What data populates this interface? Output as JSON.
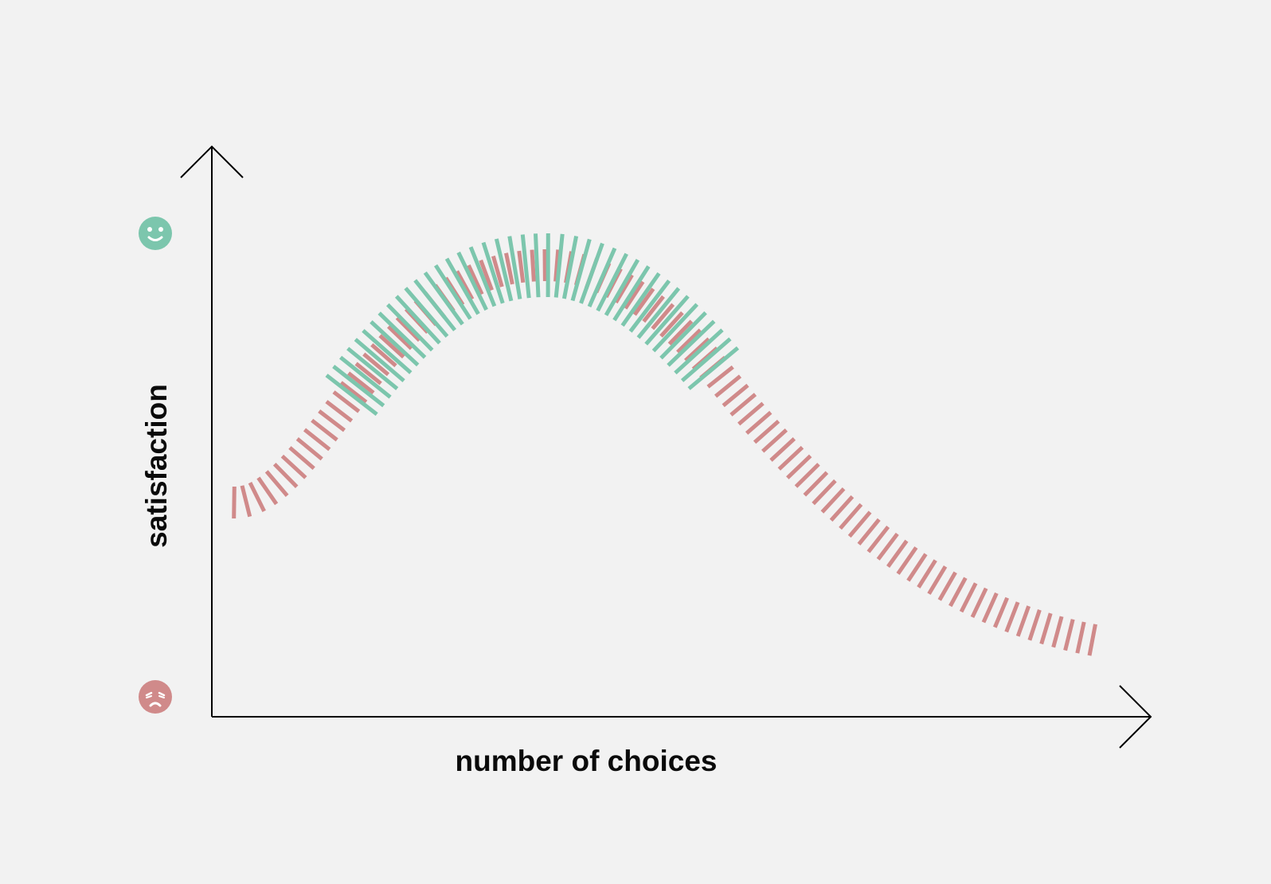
{
  "labels": {
    "x_axis": "number of choices",
    "y_axis": "satisfaction"
  },
  "icons": {
    "top": "happy-face-icon",
    "bottom": "unhappy-face-icon"
  },
  "colors": {
    "background": "#f2f2f2",
    "axis": "#000000",
    "happy": "#7cc6ad",
    "unhappy": "#d08a8a"
  }
}
